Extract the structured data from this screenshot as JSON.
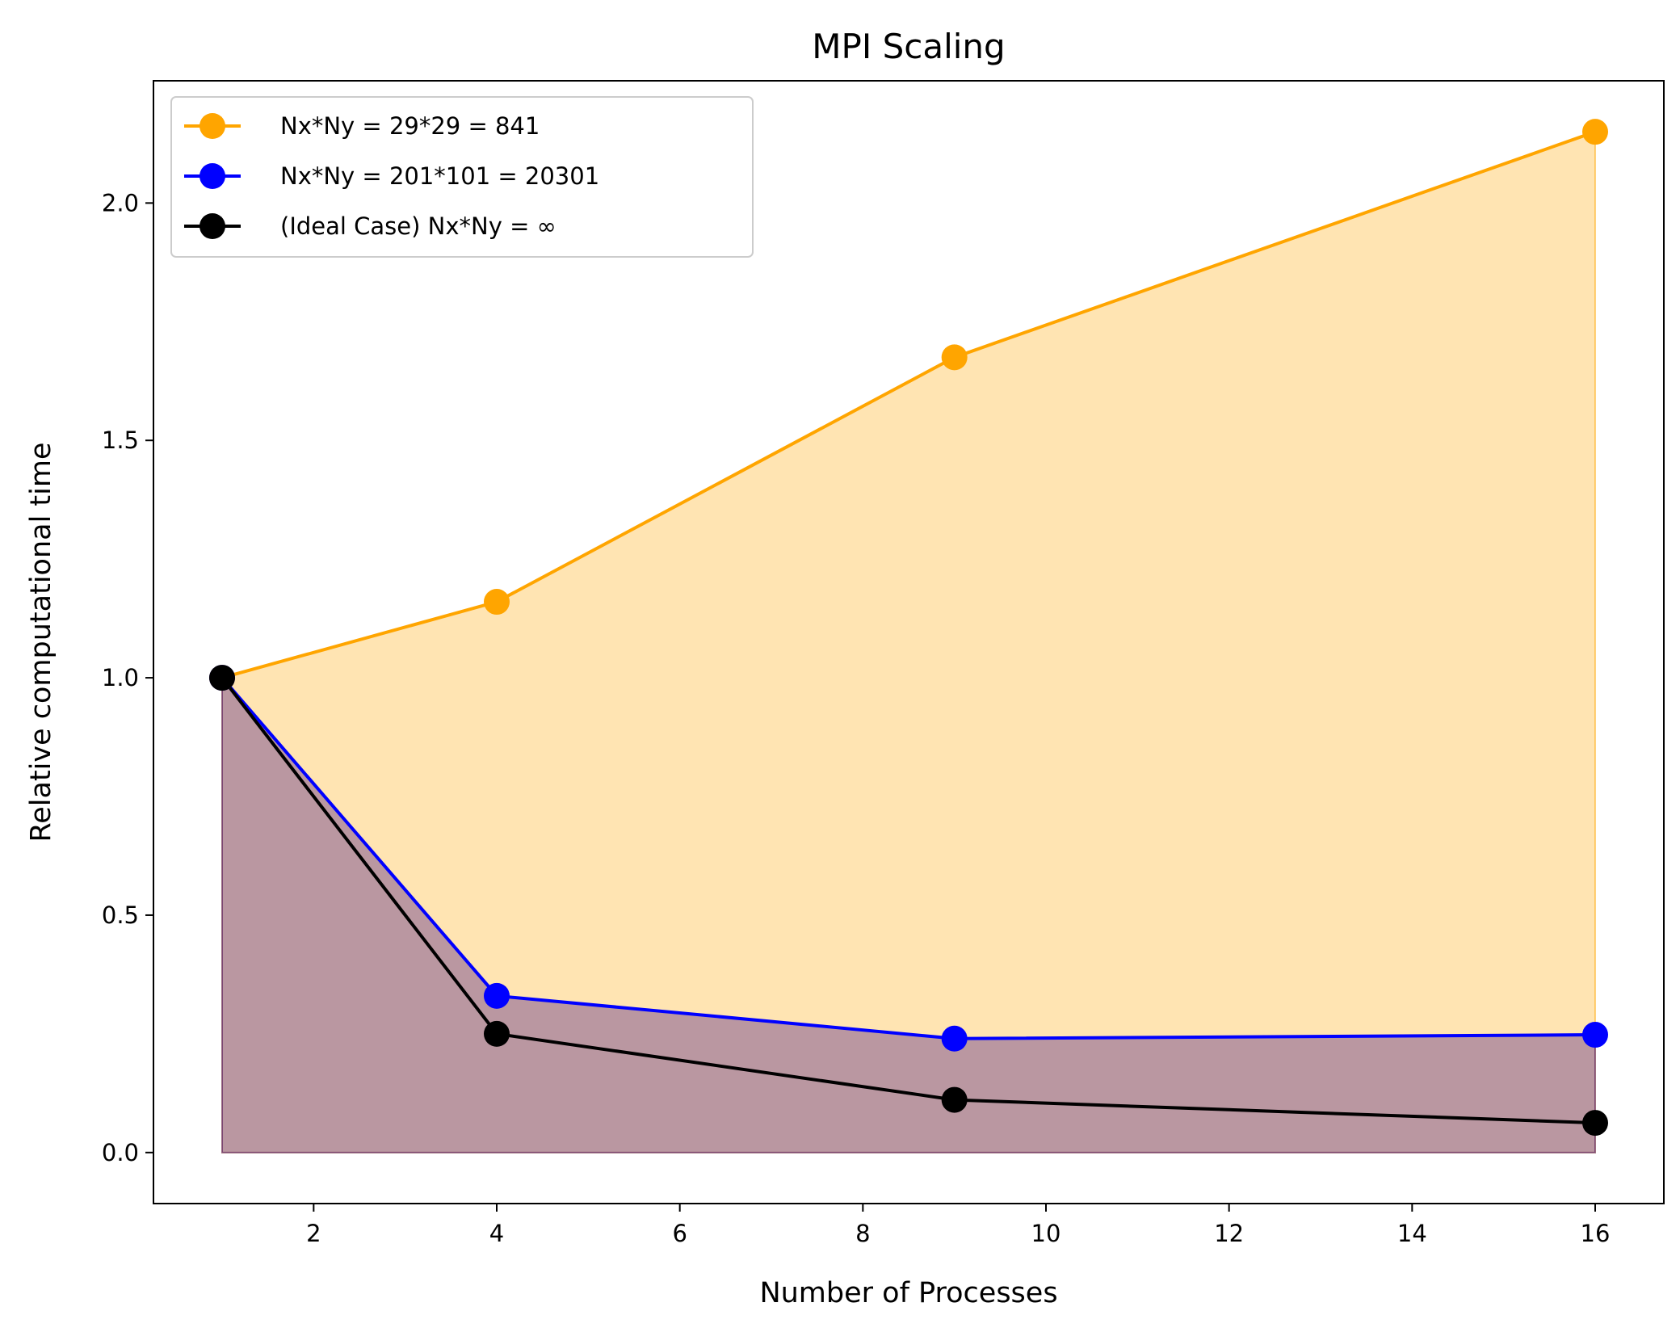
{
  "chart_data": {
    "type": "line",
    "title": "MPI Scaling",
    "xlabel": "Number of Processes",
    "ylabel": "Relative computational time",
    "xlim": [
      0.25,
      16.75
    ],
    "ylim": [
      -0.1075,
      2.2575
    ],
    "xticks": [
      2,
      4,
      6,
      8,
      10,
      12,
      14,
      16
    ],
    "yticks": [
      0.0,
      0.5,
      1.0,
      1.5,
      2.0
    ],
    "xtick_labels": [
      "2",
      "4",
      "6",
      "8",
      "10",
      "12",
      "14",
      "16"
    ],
    "ytick_labels": [
      "0.0",
      "0.5",
      "1.0",
      "1.5",
      "2.0"
    ],
    "x": [
      1,
      4,
      9,
      16
    ],
    "grid": false,
    "legend_position": "top-left",
    "series": [
      {
        "name": "Nx*Ny = 29*29 = 841",
        "color": "#ffa500",
        "fill": "#ffa500",
        "fill_opacity": 0.3,
        "values": [
          1.0,
          1.16,
          1.675,
          2.15
        ]
      },
      {
        "name": "Nx*Ny = 201*101 = 20301",
        "color": "#0000ff",
        "fill": "#3a0a80",
        "fill_opacity": 0.35,
        "values": [
          1.0,
          0.33,
          0.24,
          0.248
        ]
      },
      {
        "name": "(Ideal Case) Nx*Ny = ∞",
        "color": "#000000",
        "fill": null,
        "fill_opacity": 0,
        "values": [
          1.0,
          0.25,
          0.111,
          0.0625
        ]
      }
    ]
  }
}
